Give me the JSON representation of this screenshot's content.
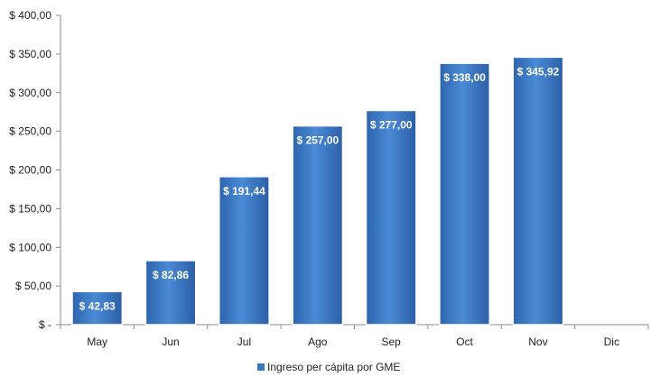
{
  "chart_data": {
    "type": "bar",
    "title": "",
    "xlabel": "",
    "ylabel": "",
    "categories": [
      "May",
      "Jun",
      "Jul",
      "Ago",
      "Sep",
      "Oct",
      "Nov",
      "Dic"
    ],
    "series": [
      {
        "name": "Ingreso per cápita por GME",
        "values": [
          42.83,
          82.86,
          191.44,
          257.0,
          277.0,
          338.0,
          345.92,
          null
        ],
        "labels": [
          "$ 42,83",
          "$ 82,86",
          "$ 191,44",
          "$ 257,00",
          "$ 277,00",
          "$ 338,00",
          "$ 345,92",
          ""
        ]
      }
    ],
    "ylim": [
      0,
      400
    ],
    "yticks": [
      0,
      50,
      100,
      150,
      200,
      250,
      300,
      350,
      400
    ],
    "ytick_labels": [
      "$ -",
      "$ 50,00",
      "$ 100,00",
      "$ 150,00",
      "$ 200,00",
      "$ 250,00",
      "$ 300,00",
      "$ 350,00",
      "$ 400,00"
    ],
    "grid": false,
    "legend_position": "bottom",
    "bar_color": "#3a78c2",
    "bar_border": "#ffffff"
  }
}
